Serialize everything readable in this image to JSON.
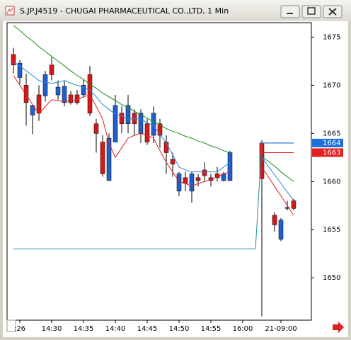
{
  "window_title": "S.JP.J4519 - CHUGAI PHARMACEUTICAL CO.,LTD, 1 Min",
  "chart_data": {
    "type": "candlestick",
    "ylim": [
      1645.6,
      1676.5
    ],
    "yticks": [
      1650,
      1655,
      1660,
      1665,
      1670,
      1675
    ],
    "xticks": [
      {
        "value": 1,
        "label": ":26"
      },
      {
        "value": 6,
        "label": "14:30"
      },
      {
        "value": 11,
        "label": "14:35"
      },
      {
        "value": 16,
        "label": "14:40"
      },
      {
        "value": 21,
        "label": "14:45"
      },
      {
        "value": 26,
        "label": "14:50"
      },
      {
        "value": 31,
        "label": "14:55"
      },
      {
        "value": 36,
        "label": "16:00"
      },
      {
        "value": 42,
        "label": "21-09:00"
      }
    ],
    "up_color": "#1f5fd0",
    "down_color": "#d81818",
    "candles": [
      {
        "open": 1673.2,
        "high": 1673.9,
        "low": 1671.2,
        "close": 1672.1
      },
      {
        "open": 1670.8,
        "high": 1672.6,
        "low": 1670.1,
        "close": 1672.3
      },
      {
        "open": 1670.0,
        "high": 1671.2,
        "low": 1665.8,
        "close": 1668.2
      },
      {
        "open": 1666.9,
        "high": 1668.0,
        "low": 1664.9,
        "close": 1667.9
      },
      {
        "open": 1669.0,
        "high": 1670.0,
        "low": 1666.3,
        "close": 1667.1
      },
      {
        "open": 1668.9,
        "high": 1671.5,
        "low": 1668.3,
        "close": 1671.1
      },
      {
        "open": 1672.1,
        "high": 1672.9,
        "low": 1670.5,
        "close": 1671.1
      },
      {
        "open": 1669.0,
        "high": 1670.5,
        "low": 1668.5,
        "close": 1669.8
      },
      {
        "open": 1668.2,
        "high": 1670.4,
        "low": 1667.8,
        "close": 1669.9
      },
      {
        "open": 1669.0,
        "high": 1669.4,
        "low": 1668.0,
        "close": 1668.2
      },
      {
        "open": 1669.0,
        "high": 1669.5,
        "low": 1668.0,
        "close": 1668.2
      },
      {
        "open": 1669.0,
        "high": 1670.6,
        "low": 1668.7,
        "close": 1670.0
      },
      {
        "open": 1671.1,
        "high": 1672.0,
        "low": 1666.8,
        "close": 1667.1
      },
      {
        "open": 1666.0,
        "high": 1666.5,
        "low": 1663.0,
        "close": 1665.0
      },
      {
        "open": 1664.1,
        "high": 1664.8,
        "low": 1660.5,
        "close": 1660.8
      },
      {
        "open": 1660.1,
        "high": 1665.0,
        "low": 1660.1,
        "close": 1664.5
      },
      {
        "open": 1664.1,
        "high": 1669.0,
        "low": 1664.1,
        "close": 1667.9
      },
      {
        "open": 1667.1,
        "high": 1667.8,
        "low": 1665.0,
        "close": 1666.0
      },
      {
        "open": 1666.0,
        "high": 1669.0,
        "low": 1665.0,
        "close": 1667.9
      },
      {
        "open": 1667.1,
        "high": 1667.5,
        "low": 1664.8,
        "close": 1666.0
      },
      {
        "open": 1665.0,
        "high": 1667.5,
        "low": 1664.0,
        "close": 1667.1
      },
      {
        "open": 1666.0,
        "high": 1666.5,
        "low": 1663.8,
        "close": 1664.1
      },
      {
        "open": 1664.8,
        "high": 1667.8,
        "low": 1664.0,
        "close": 1667.1
      },
      {
        "open": 1666.0,
        "high": 1666.5,
        "low": 1663.5,
        "close": 1664.8
      },
      {
        "open": 1664.1,
        "high": 1664.8,
        "low": 1660.8,
        "close": 1663.0
      },
      {
        "open": 1662.3,
        "high": 1663.0,
        "low": 1660.5,
        "close": 1661.8
      },
      {
        "open": 1659.0,
        "high": 1661.0,
        "low": 1658.5,
        "close": 1660.8
      },
      {
        "open": 1660.4,
        "high": 1661.0,
        "low": 1659.0,
        "close": 1659.8
      },
      {
        "open": 1659.0,
        "high": 1661.0,
        "low": 1657.8,
        "close": 1660.8
      },
      {
        "open": 1660.4,
        "high": 1660.8,
        "low": 1659.5,
        "close": 1660.1
      },
      {
        "open": 1661.2,
        "high": 1662.0,
        "low": 1660.0,
        "close": 1660.6
      },
      {
        "open": 1660.4,
        "high": 1660.8,
        "low": 1659.5,
        "close": 1660.1
      },
      {
        "open": 1660.8,
        "high": 1661.5,
        "low": 1660.0,
        "close": 1660.4
      },
      {
        "open": 1660.1,
        "high": 1661.0,
        "low": 1660.0,
        "close": 1660.8
      },
      {
        "open": 1660.1,
        "high": 1663.2,
        "low": 1660.1,
        "close": 1663.0
      },
      null,
      null,
      null,
      null,
      {
        "open": 1664.0,
        "high": 1664.3,
        "low": 1646.0,
        "close": 1660.3
      },
      null,
      {
        "open": 1656.5,
        "high": 1656.8,
        "low": 1654.8,
        "close": 1655.5
      },
      {
        "open": 1654.0,
        "high": 1656.2,
        "low": 1653.8,
        "close": 1656.0
      },
      {
        "open": 1657.2,
        "high": 1658.0,
        "low": 1657.0,
        "close": 1657.3
      },
      {
        "open": 1658.0,
        "high": 1658.2,
        "low": 1657.0,
        "close": 1657.2
      }
    ],
    "series": [
      {
        "color": "#1a8a1a",
        "values": [
          1676.2,
          1675.7,
          1675.1,
          1674.6,
          1674.0,
          1673.5,
          1673.0,
          1672.5,
          1672.0,
          1671.5,
          1671.0,
          1670.6,
          1670.1,
          1669.7,
          1669.2,
          1668.8,
          1668.4,
          1668.0,
          1667.7,
          1667.3,
          1666.9,
          1666.6,
          1666.2,
          1665.9,
          1665.5,
          1665.2,
          1665.0,
          1664.7,
          1664.5,
          1664.2,
          1664.0,
          1663.7,
          1663.5,
          1663.2,
          1663.0,
          null,
          null,
          null,
          null,
          1662.6,
          1662.1,
          1661.6,
          1661.0,
          1660.5,
          1660.0
        ]
      },
      {
        "color": "#2a86d8",
        "values": [
          1672.4,
          1672.0,
          1671.5,
          1671.0,
          1670.5,
          1670.3,
          1670.2,
          1670.3,
          1670.5,
          1670.2,
          1670.0,
          1669.8,
          1669.5,
          1668.8,
          1668.0,
          1667.5,
          1667.0,
          1666.8,
          1666.5,
          1666.5,
          1666.5,
          1666.1,
          1665.8,
          1664.9,
          1664.0,
          1662.8,
          1661.5,
          1661.2,
          1661.0,
          1661.0,
          1661.0,
          1661.0,
          1661.0,
          1661.5,
          1662.0,
          null,
          null,
          null,
          null,
          1662.5,
          1661.6,
          1660.7,
          1659.8,
          1658.9,
          1658.0
        ]
      },
      {
        "color": "#e02020",
        "values": [
          1671.0,
          1670.0,
          1669.0,
          1668.0,
          1667.0,
          1667.8,
          1668.5,
          1668.4,
          1668.3,
          1668.4,
          1668.5,
          1668.8,
          1669.0,
          1667.8,
          1666.5,
          1664.0,
          1662.5,
          1663.5,
          1664.5,
          1664.8,
          1665.0,
          1664.8,
          1664.5,
          1663.2,
          1662.0,
          1661.0,
          1660.0,
          1659.8,
          1659.5,
          1659.8,
          1660.0,
          1660.2,
          1660.5,
          1660.8,
          1661.0,
          null,
          null,
          null,
          null,
          1661.5,
          1660.5,
          1659.5,
          1658.5,
          1657.5,
          1656.5
        ]
      },
      {
        "color": "#2090a8",
        "values": [
          1653,
          1653,
          1653,
          1653,
          1653,
          1653,
          1653,
          1653,
          1653,
          1653,
          1653,
          1653,
          1653,
          1653,
          1653,
          1653,
          1653,
          1653,
          1653,
          1653,
          1653,
          1653,
          1653,
          1653,
          1653,
          1653,
          1653,
          1653,
          1653,
          1653,
          1653,
          1653,
          1653,
          1653,
          1653,
          1653,
          1653,
          1653,
          1653,
          1664,
          1664,
          1664,
          1664,
          1664,
          1664
        ]
      }
    ],
    "price_tags": [
      {
        "value": 1664,
        "color": "#1e6fd9"
      },
      {
        "value": 1663,
        "color": "#e02020"
      }
    ]
  }
}
